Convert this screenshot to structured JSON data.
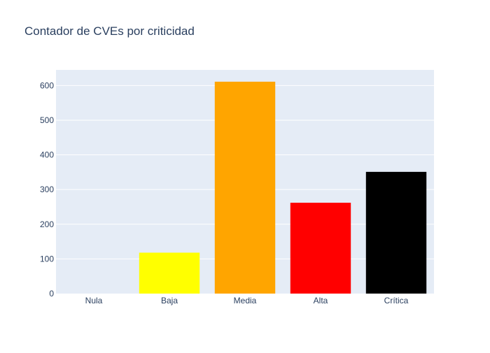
{
  "chart_data": {
    "type": "bar",
    "title": "Contador de CVEs por criticidad",
    "xlabel": "",
    "ylabel": "",
    "categories": [
      "Nula",
      "Baja",
      "Media",
      "Alta",
      "Crítica"
    ],
    "values": [
      0,
      118,
      611,
      262,
      351
    ],
    "bar_colors": [
      "#ffffff",
      "#ffff00",
      "#ffa500",
      "#ff0000",
      "#000000"
    ],
    "ylim": [
      0,
      645
    ],
    "yticks": [
      0,
      100,
      200,
      300,
      400,
      500,
      600
    ],
    "grid": true,
    "legend": "none",
    "plot_background": "#e5ecf6",
    "title_color": "#2a3f5f",
    "tick_color": "#2a3f5f"
  }
}
